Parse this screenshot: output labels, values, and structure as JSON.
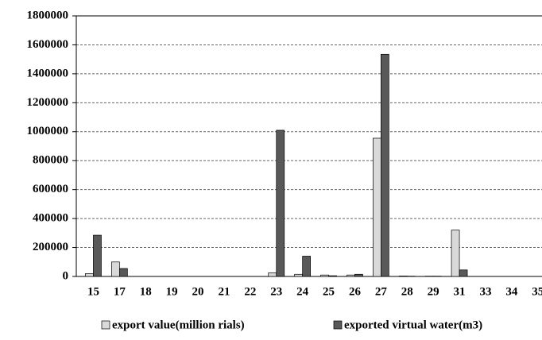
{
  "chart_data": {
    "type": "bar",
    "categories": [
      "15",
      "17",
      "18",
      "19",
      "20",
      "21",
      "22",
      "23",
      "24",
      "25",
      "26",
      "27",
      "28",
      "29",
      "31",
      "33",
      "34",
      "35"
    ],
    "series": [
      {
        "name": "export value(million rials)",
        "color": "#d9d9d9",
        "values": [
          20000,
          100000,
          0,
          0,
          0,
          0,
          0,
          25000,
          15000,
          10000,
          10000,
          955000,
          3000,
          2000,
          320000,
          0,
          0,
          0
        ]
      },
      {
        "name": "exported virtual water(m3)",
        "color": "#595959",
        "values": [
          285000,
          55000,
          0,
          0,
          0,
          0,
          0,
          1010000,
          140000,
          5000,
          15000,
          1535000,
          2000,
          2000,
          45000,
          0,
          0,
          0
        ]
      }
    ],
    "ylim": [
      0,
      1800000
    ],
    "yticks": [
      0,
      200000,
      400000,
      600000,
      800000,
      1000000,
      1200000,
      1400000,
      1600000,
      1800000
    ],
    "grid": true
  }
}
